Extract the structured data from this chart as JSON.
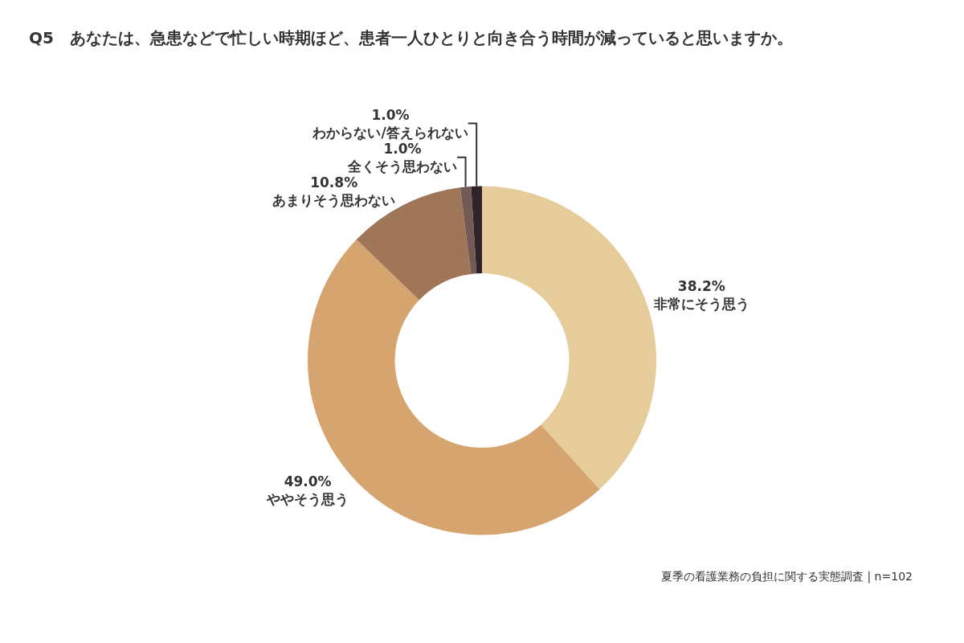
{
  "chart_data": {
    "type": "donut",
    "title": "Q5　あなたは、急患などで忙しい時期ほど、患者一人ひとりと向き合う時間が減っていると思いますか。",
    "categories": [
      "非常にそう思う",
      "ややそう思う",
      "あまりそう思わない",
      "全くそう思わない",
      "わからない/答えられない"
    ],
    "values": [
      38.2,
      49.0,
      10.8,
      1.0,
      1.0
    ],
    "value_labels": [
      "38.2%",
      "49.0%",
      "10.8%",
      "1.0%",
      "1.0%"
    ],
    "colors": [
      "#e6cc9a",
      "#d6a56f",
      "#a07659",
      "#735a55",
      "#2e2327"
    ],
    "annotations": [
      "夏季の看護業務の負担に関する実態調査 | n=102"
    ],
    "legend": false
  }
}
